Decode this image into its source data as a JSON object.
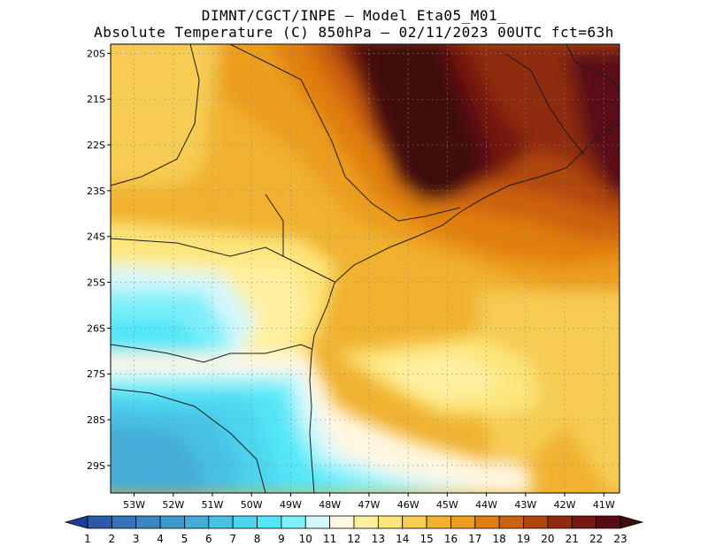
{
  "header": {
    "line1": "DIMNT/CGCT/INPE –  Model Eta05_M01_",
    "line2": "Absolute Temperature (C) 850hPa –  02/11/2023 00UTC fct=63h"
  },
  "map": {
    "lat_ticks": [
      "20S",
      "21S",
      "22S",
      "23S",
      "24S",
      "25S",
      "26S",
      "27S",
      "28S",
      "29S"
    ],
    "lon_ticks": [
      "53W",
      "52W",
      "51W",
      "50W",
      "49W",
      "48W",
      "47W",
      "46W",
      "45W",
      "44W",
      "43W",
      "42W",
      "41W"
    ],
    "lat_range": [
      -29.6,
      -19.8
    ],
    "lon_range": [
      -53.6,
      -40.6
    ],
    "grid": "dotted"
  },
  "colorbar": {
    "labels": [
      "1",
      "2",
      "3",
      "4",
      "5",
      "6",
      "7",
      "8",
      "9",
      "10",
      "11",
      "12",
      "13",
      "14",
      "15",
      "16",
      "17",
      "18",
      "19",
      "20",
      "21",
      "22",
      "23"
    ],
    "colors": [
      "#1c3f95",
      "#2b5aa8",
      "#3473b8",
      "#3a87c2",
      "#3f99cc",
      "#44acd8",
      "#47c1e4",
      "#4dd4ee",
      "#52e6f6",
      "#7ef0fa",
      "#d4f7fb",
      "#fff7e0",
      "#fff0a0",
      "#fde57a",
      "#f6cc52",
      "#f0b230",
      "#ec9d1a",
      "#e07e10",
      "#cc6110",
      "#b0460f",
      "#8e2b10",
      "#741810",
      "#5a0c14",
      "#3f0c10"
    ]
  }
}
